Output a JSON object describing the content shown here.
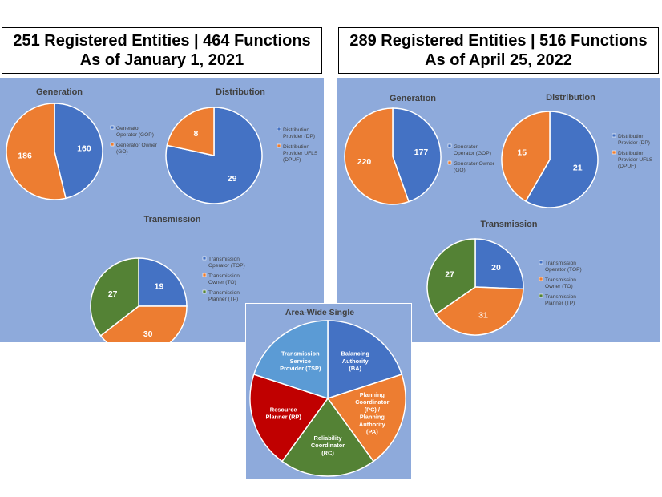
{
  "headers": [
    {
      "line1": "251 Registered Entities | 464 Functions",
      "line2": "As of January 1, 2021"
    },
    {
      "line1": "289 Registered Entities | 516 Functions",
      "line2": "As of April 25, 2022"
    }
  ],
  "colors": {
    "blue": "#4472c4",
    "orange": "#ed7d31",
    "green": "#548235",
    "red": "#c00000",
    "light_blue": "#5b9bd5",
    "panel": "#8eaadb"
  },
  "chart_data": [
    {
      "type": "pie",
      "title": "Generation",
      "panel": "2021",
      "categories": [
        "Generator Operator (GOP)",
        "Generator Owner (GO)"
      ],
      "legend_lines": [
        [
          "Generator",
          "Operator (GOP)"
        ],
        [
          "Generator Owner",
          "(GO)"
        ]
      ],
      "values": [
        160,
        186
      ]
    },
    {
      "type": "pie",
      "title": "Distribution",
      "panel": "2021",
      "categories": [
        "Distribution Provider (DP)",
        "Distribution Provider UFLS (DPUF)"
      ],
      "legend_lines": [
        [
          "Distribution",
          "Provider (DP)"
        ],
        [
          "Distribution",
          "Provider UFLS",
          "(DPUF)"
        ]
      ],
      "values": [
        29,
        8
      ]
    },
    {
      "type": "pie",
      "title": "Transmission",
      "panel": "2021",
      "categories": [
        "Transmission Operator (TOP)",
        "Transmission Owner (TO)",
        "Transmission Planner (TP)"
      ],
      "legend_lines": [
        [
          "Transmission",
          "Operator (TOP)"
        ],
        [
          "Transmission",
          "Owner (TO)"
        ],
        [
          "Transmission",
          "Planner (TP)"
        ]
      ],
      "values": [
        19,
        30,
        27
      ]
    },
    {
      "type": "pie",
      "title": "Generation",
      "panel": "2022",
      "categories": [
        "Generator Operator (GOP)",
        "Generator Owner (GO)"
      ],
      "legend_lines": [
        [
          "Generator",
          "Operator (GOP)"
        ],
        [
          "Generator Owner",
          "(GO)"
        ]
      ],
      "values": [
        177,
        220
      ]
    },
    {
      "type": "pie",
      "title": "Distribution",
      "panel": "2022",
      "categories": [
        "Distribution Provider (DP)",
        "Distribution Provider UFLS (DPUF)"
      ],
      "legend_lines": [
        [
          "Distribution",
          "Provider (DP)"
        ],
        [
          "Distribution",
          "Provider UFLS",
          "(DPUF)"
        ]
      ],
      "values": [
        21,
        15
      ]
    },
    {
      "type": "pie",
      "title": "Transmission",
      "panel": "2022",
      "categories": [
        "Transmission Operator (TOP)",
        "Transmission Owner (TO)",
        "Transmission Planner (TP)"
      ],
      "legend_lines": [
        [
          "Transmission",
          "Operator (TOP)"
        ],
        [
          "Transmission",
          "Owner (TO)"
        ],
        [
          "Transmission",
          "Planner (TP)"
        ]
      ],
      "values": [
        20,
        31,
        27
      ]
    },
    {
      "type": "pie",
      "title": "Area-Wide Single",
      "categories": [
        "Balancing Authority (BA)",
        "Planning Coordinator (PC) / Planning Authority (PA)",
        "Reliability Coordinator (RC)",
        "Resource Planner (RP)",
        "Transmission Service Provider (TSP)"
      ],
      "slice_lines": [
        [
          "Balancing",
          "Authority",
          "(BA)"
        ],
        [
          "Planning",
          "Coordinator",
          "(PC) /",
          "Planning",
          "Authority",
          "(PA)"
        ],
        [
          "Reliability",
          "Coordinator",
          "(RC)"
        ],
        [
          "Resource",
          "Planner (RP)"
        ],
        [
          "Transmission",
          "Service",
          "Provider (TSP)"
        ]
      ],
      "values": [
        1,
        1,
        1,
        1,
        1
      ]
    }
  ]
}
